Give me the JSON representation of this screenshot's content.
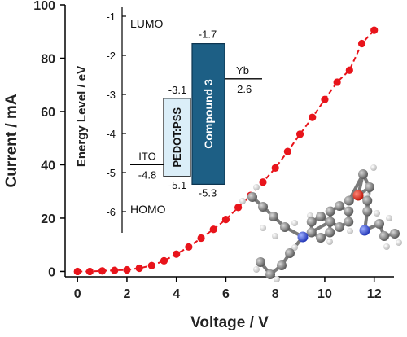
{
  "chart_data": [
    {
      "type": "line",
      "xlabel": "Voltage / V",
      "ylabel": "Current / mA",
      "xlim": [
        -0.5,
        12.8
      ],
      "ylim": [
        -2,
        100
      ],
      "xticks": [
        0,
        2,
        4,
        6,
        8,
        10,
        12
      ],
      "yticks": [
        0,
        20,
        40,
        60,
        80,
        100
      ],
      "grid": false,
      "series": [
        {
          "color": "#e8141b",
          "marker": "circle",
          "line_style": "dashed",
          "x": [
            0,
            0.5,
            1,
            1.5,
            2,
            2.5,
            3,
            3.5,
            4,
            4.5,
            5,
            5.5,
            6,
            6.5,
            7,
            7.5,
            8,
            8.5,
            9,
            9.5,
            10,
            10.5,
            11,
            11.5,
            12
          ],
          "y": [
            0,
            0,
            0.2,
            0.4,
            0.6,
            1.2,
            2.2,
            4,
            6.5,
            9.2,
            12.5,
            15.8,
            19.5,
            24,
            28.5,
            33.5,
            38.8,
            45,
            51.5,
            57.8,
            64.5,
            71,
            75.5,
            85.5,
            90.5
          ]
        }
      ]
    },
    {
      "type": "bar",
      "ylabel": "Energy Level / eV",
      "ylim": [
        -6.5,
        -1.4
      ],
      "yticks": [
        -1,
        -2,
        -3,
        -4,
        -5,
        -6
      ],
      "annotations": {
        "top": "LUMO",
        "bottom": "HOMO"
      },
      "levels": [
        {
          "name": "ITO",
          "value": -4.8,
          "value_label": "-4.8"
        },
        {
          "name": "PEDOT:PSS",
          "top": -3.1,
          "bottom": -5.1,
          "top_label": "-3.1",
          "bottom_label": "-5.1",
          "fill": "#dbeef8"
        },
        {
          "name": "Compound 3",
          "top": -1.7,
          "bottom": -5.3,
          "top_label": "-1.7",
          "bottom_label": "-5.3",
          "fill": "#1d5f85"
        },
        {
          "name": "Yb",
          "value": -2.6,
          "value_label": "-2.6"
        }
      ]
    }
  ]
}
